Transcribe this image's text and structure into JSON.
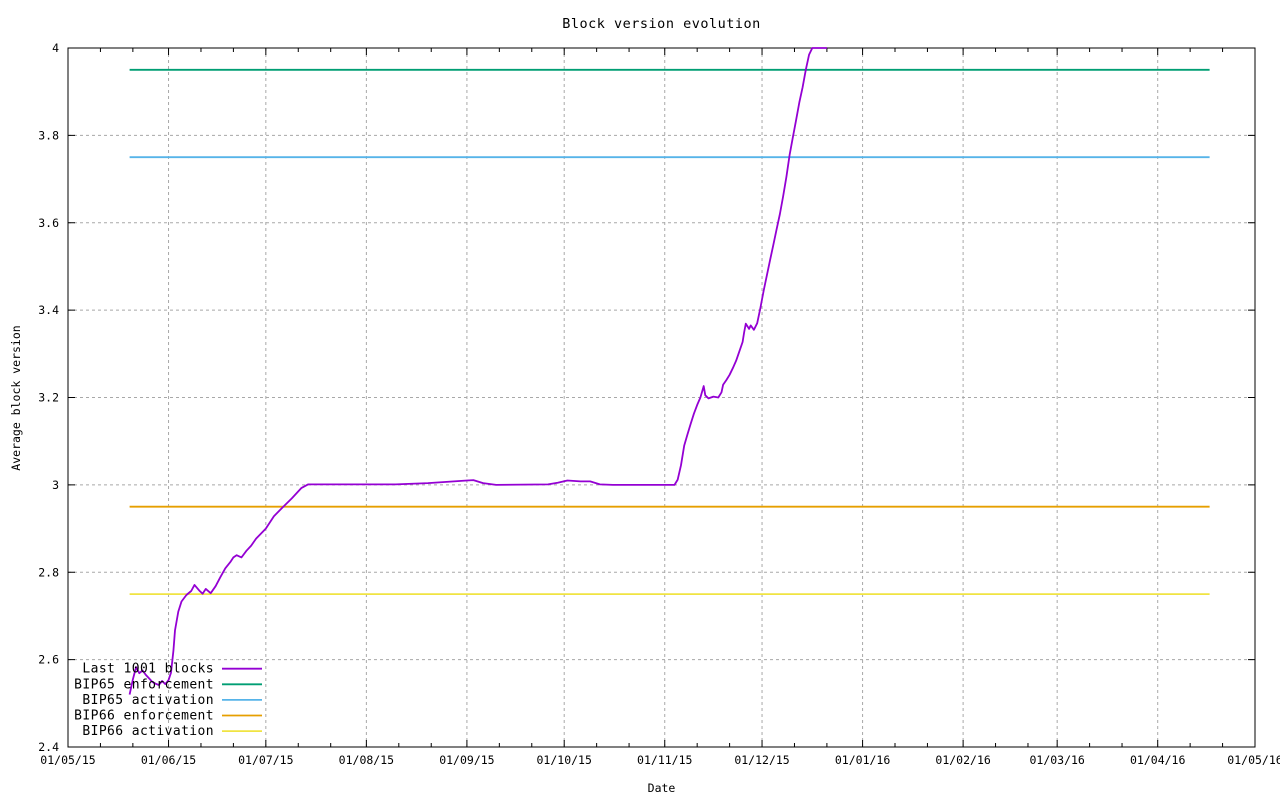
{
  "page": {
    "background": "#ffffff"
  },
  "chart_data": {
    "type": "line",
    "title": "Block version evolution",
    "xlabel": "Date",
    "ylabel": "Average block version",
    "x_start": "2015-05-01",
    "x_end": "2016-05-01",
    "ylim": [
      2.4,
      4
    ],
    "y_ticks": [
      2.4,
      2.6,
      2.8,
      3,
      3.2,
      3.4,
      3.6,
      3.8,
      4
    ],
    "y_tick_labels": [
      "2.4",
      "2.6",
      "2.8",
      "3",
      "3.2",
      "3.4",
      "3.6",
      "3.8",
      "4"
    ],
    "x_tick_labels": [
      "01/05/15",
      "01/06/15",
      "01/07/15",
      "01/08/15",
      "01/09/15",
      "01/10/15",
      "01/11/15",
      "01/12/15",
      "01/01/16",
      "01/02/16",
      "01/03/16",
      "01/04/16",
      "01/05/16"
    ],
    "grid": true,
    "legend_position": "bottom-left",
    "axis_color": "#000000",
    "grid_color": "#a8a8a8",
    "series": [
      {
        "name": "Last 1001 blocks",
        "color": "#9400d3",
        "points": [
          [
            "2015-05-20",
            2.52
          ],
          [
            "2015-05-21",
            2.555
          ],
          [
            "2015-05-22",
            2.583
          ],
          [
            "2015-05-23",
            2.569
          ],
          [
            "2015-05-24",
            2.575
          ],
          [
            "2015-05-25",
            2.565
          ],
          [
            "2015-05-26",
            2.557
          ],
          [
            "2015-05-27",
            2.549
          ],
          [
            "2015-05-28",
            2.545
          ],
          [
            "2015-05-29",
            2.542
          ],
          [
            "2015-05-30",
            2.551
          ],
          [
            "2015-05-31",
            2.544
          ],
          [
            "2015-06-01",
            2.553
          ],
          [
            "2015-06-01T18",
            2.57
          ],
          [
            "2015-06-02T12",
            2.62
          ],
          [
            "2015-06-03",
            2.667
          ],
          [
            "2015-06-04",
            2.71
          ],
          [
            "2015-06-05",
            2.733
          ],
          [
            "2015-06-06T12",
            2.748
          ],
          [
            "2015-06-08",
            2.757
          ],
          [
            "2015-06-09",
            2.771
          ],
          [
            "2015-06-10T12",
            2.758
          ],
          [
            "2015-06-11T12",
            2.751
          ],
          [
            "2015-06-12T12",
            2.762
          ],
          [
            "2015-06-14",
            2.752
          ],
          [
            "2015-06-15T12",
            2.768
          ],
          [
            "2015-06-17",
            2.789
          ],
          [
            "2015-06-18T12",
            2.809
          ],
          [
            "2015-06-20",
            2.823
          ],
          [
            "2015-06-21",
            2.834
          ],
          [
            "2015-06-22",
            2.839
          ],
          [
            "2015-06-23T12",
            2.834
          ],
          [
            "2015-06-25",
            2.849
          ],
          [
            "2015-06-26T12",
            2.861
          ],
          [
            "2015-06-28",
            2.877
          ],
          [
            "2015-07-01",
            2.9
          ],
          [
            "2015-07-03T12",
            2.928
          ],
          [
            "2015-07-06",
            2.947
          ],
          [
            "2015-07-09",
            2.969
          ],
          [
            "2015-07-12",
            2.993
          ],
          [
            "2015-07-14",
            3.001
          ],
          [
            "2015-08-10",
            3.001
          ],
          [
            "2015-08-20",
            3.004
          ],
          [
            "2015-08-28",
            3.008
          ],
          [
            "2015-09-01",
            3.01
          ],
          [
            "2015-09-03",
            3.011
          ],
          [
            "2015-09-06",
            3.004
          ],
          [
            "2015-09-10",
            3.0
          ],
          [
            "2015-09-26",
            3.001
          ],
          [
            "2015-09-29",
            3.005
          ],
          [
            "2015-10-02",
            3.01
          ],
          [
            "2015-10-06",
            3.008
          ],
          [
            "2015-10-09",
            3.008
          ],
          [
            "2015-10-12",
            3.001
          ],
          [
            "2015-10-16",
            3.0
          ],
          [
            "2015-11-04",
            3.0
          ],
          [
            "2015-11-05",
            3.012
          ],
          [
            "2015-11-06",
            3.045
          ],
          [
            "2015-11-07",
            3.09
          ],
          [
            "2015-11-08",
            3.115
          ],
          [
            "2015-11-09",
            3.14
          ],
          [
            "2015-11-10",
            3.163
          ],
          [
            "2015-11-11",
            3.183
          ],
          [
            "2015-11-12",
            3.2
          ],
          [
            "2015-11-13",
            3.226
          ],
          [
            "2015-11-13T12",
            3.205
          ],
          [
            "2015-11-14T12",
            3.198
          ],
          [
            "2015-11-16",
            3.202
          ],
          [
            "2015-11-17T12",
            3.2
          ],
          [
            "2015-11-18T12",
            3.212
          ],
          [
            "2015-11-19",
            3.229
          ],
          [
            "2015-11-20",
            3.24
          ],
          [
            "2015-11-21",
            3.252
          ],
          [
            "2015-11-22",
            3.267
          ],
          [
            "2015-11-23",
            3.284
          ],
          [
            "2015-11-24",
            3.305
          ],
          [
            "2015-11-25",
            3.327
          ],
          [
            "2015-11-25T12",
            3.35
          ],
          [
            "2015-11-26",
            3.369
          ],
          [
            "2015-11-27",
            3.357
          ],
          [
            "2015-11-27T12",
            3.365
          ],
          [
            "2015-11-28T12",
            3.355
          ],
          [
            "2015-11-29T12",
            3.37
          ],
          [
            "2015-11-30T12",
            3.405
          ],
          [
            "2015-12-01T12",
            3.445
          ],
          [
            "2015-12-02T12",
            3.48
          ],
          [
            "2015-12-03T12",
            3.515
          ],
          [
            "2015-12-04T12",
            3.55
          ],
          [
            "2015-12-05T12",
            3.585
          ],
          [
            "2015-12-06T12",
            3.62
          ],
          [
            "2015-12-07T12",
            3.66
          ],
          [
            "2015-12-08T12",
            3.705
          ],
          [
            "2015-12-09T12",
            3.755
          ],
          [
            "2015-12-10T12",
            3.795
          ],
          [
            "2015-12-11T12",
            3.835
          ],
          [
            "2015-12-12T12",
            3.875
          ],
          [
            "2015-12-13T12",
            3.91
          ],
          [
            "2015-12-14T12",
            3.95
          ],
          [
            "2015-12-15T12",
            3.985
          ],
          [
            "2015-12-16T12",
            4.0
          ],
          [
            "2015-12-21",
            4.0
          ]
        ]
      },
      {
        "name": "BIP65 enforcement",
        "color": "#009e73",
        "points": [
          [
            "2015-05-20",
            3.95
          ],
          [
            "2016-04-17",
            3.95
          ]
        ]
      },
      {
        "name": "BIP65 activation",
        "color": "#56b4e9",
        "points": [
          [
            "2015-05-20",
            3.75
          ],
          [
            "2016-04-17",
            3.75
          ]
        ]
      },
      {
        "name": "BIP66 enforcement",
        "color": "#e69f00",
        "points": [
          [
            "2015-05-20",
            2.95
          ],
          [
            "2016-04-17",
            2.95
          ]
        ]
      },
      {
        "name": "BIP66 activation",
        "color": "#f0e442",
        "points": [
          [
            "2015-05-20",
            2.75
          ],
          [
            "2016-04-17",
            2.75
          ]
        ]
      }
    ]
  }
}
